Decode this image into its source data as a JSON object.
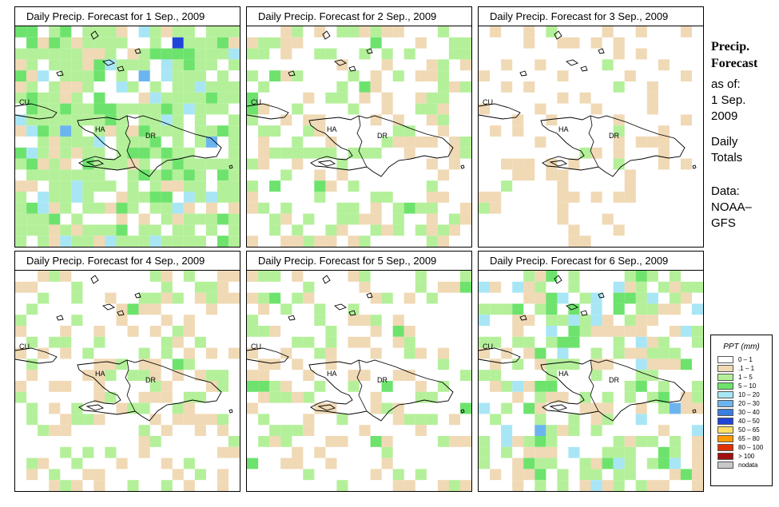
{
  "panels": [
    {
      "title": "Daily Precip. Forecast for  1 Sep., 2009"
    },
    {
      "title": "Daily Precip. Forecast for  2 Sep., 2009"
    },
    {
      "title": "Daily Precip. Forecast for  3 Sep., 2009"
    },
    {
      "title": "Daily Precip. Forecast for  4 Sep., 2009"
    },
    {
      "title": "Daily Precip. Forecast for  5 Sep., 2009"
    },
    {
      "title": "Daily Precip. Forecast for  6 Sep., 2009"
    }
  ],
  "map_labels": {
    "cu": "CU",
    "ha": "HA",
    "dr": "DR"
  },
  "side": {
    "title_1": "Precip.",
    "title_2": "Forecast",
    "asof_1": "as of:",
    "asof_2": "1 Sep.",
    "asof_3": "2009",
    "totals_1": "Daily",
    "totals_2": "Totals",
    "data_1": "Data:",
    "data_2": "NOAA–",
    "data_3": "GFS"
  },
  "legend": {
    "title": "PPT (mm)",
    "items": [
      {
        "label": "0 – 1",
        "color": "#ffffff"
      },
      {
        "label": ".1 – 1",
        "color": "#f0d9b5"
      },
      {
        "label": "1 – 5",
        "color": "#b4f09a"
      },
      {
        "label": "5 – 10",
        "color": "#6de36d"
      },
      {
        "label": "10 – 20",
        "color": "#a8e6f5"
      },
      {
        "label": "20 – 30",
        "color": "#6cb4ee"
      },
      {
        "label": "30 – 40",
        "color": "#3a7fe0"
      },
      {
        "label": "40 – 50",
        "color": "#1f45d8"
      },
      {
        "label": "50 – 65",
        "color": "#ffe066"
      },
      {
        "label": "65 – 80",
        "color": "#ff9a00"
      },
      {
        "label": "80 – 100",
        "color": "#e03000"
      },
      {
        "label": "> 100",
        "color": "#a01010"
      },
      {
        "label": "nodata",
        "color": "#c8c8c8"
      }
    ]
  }
}
